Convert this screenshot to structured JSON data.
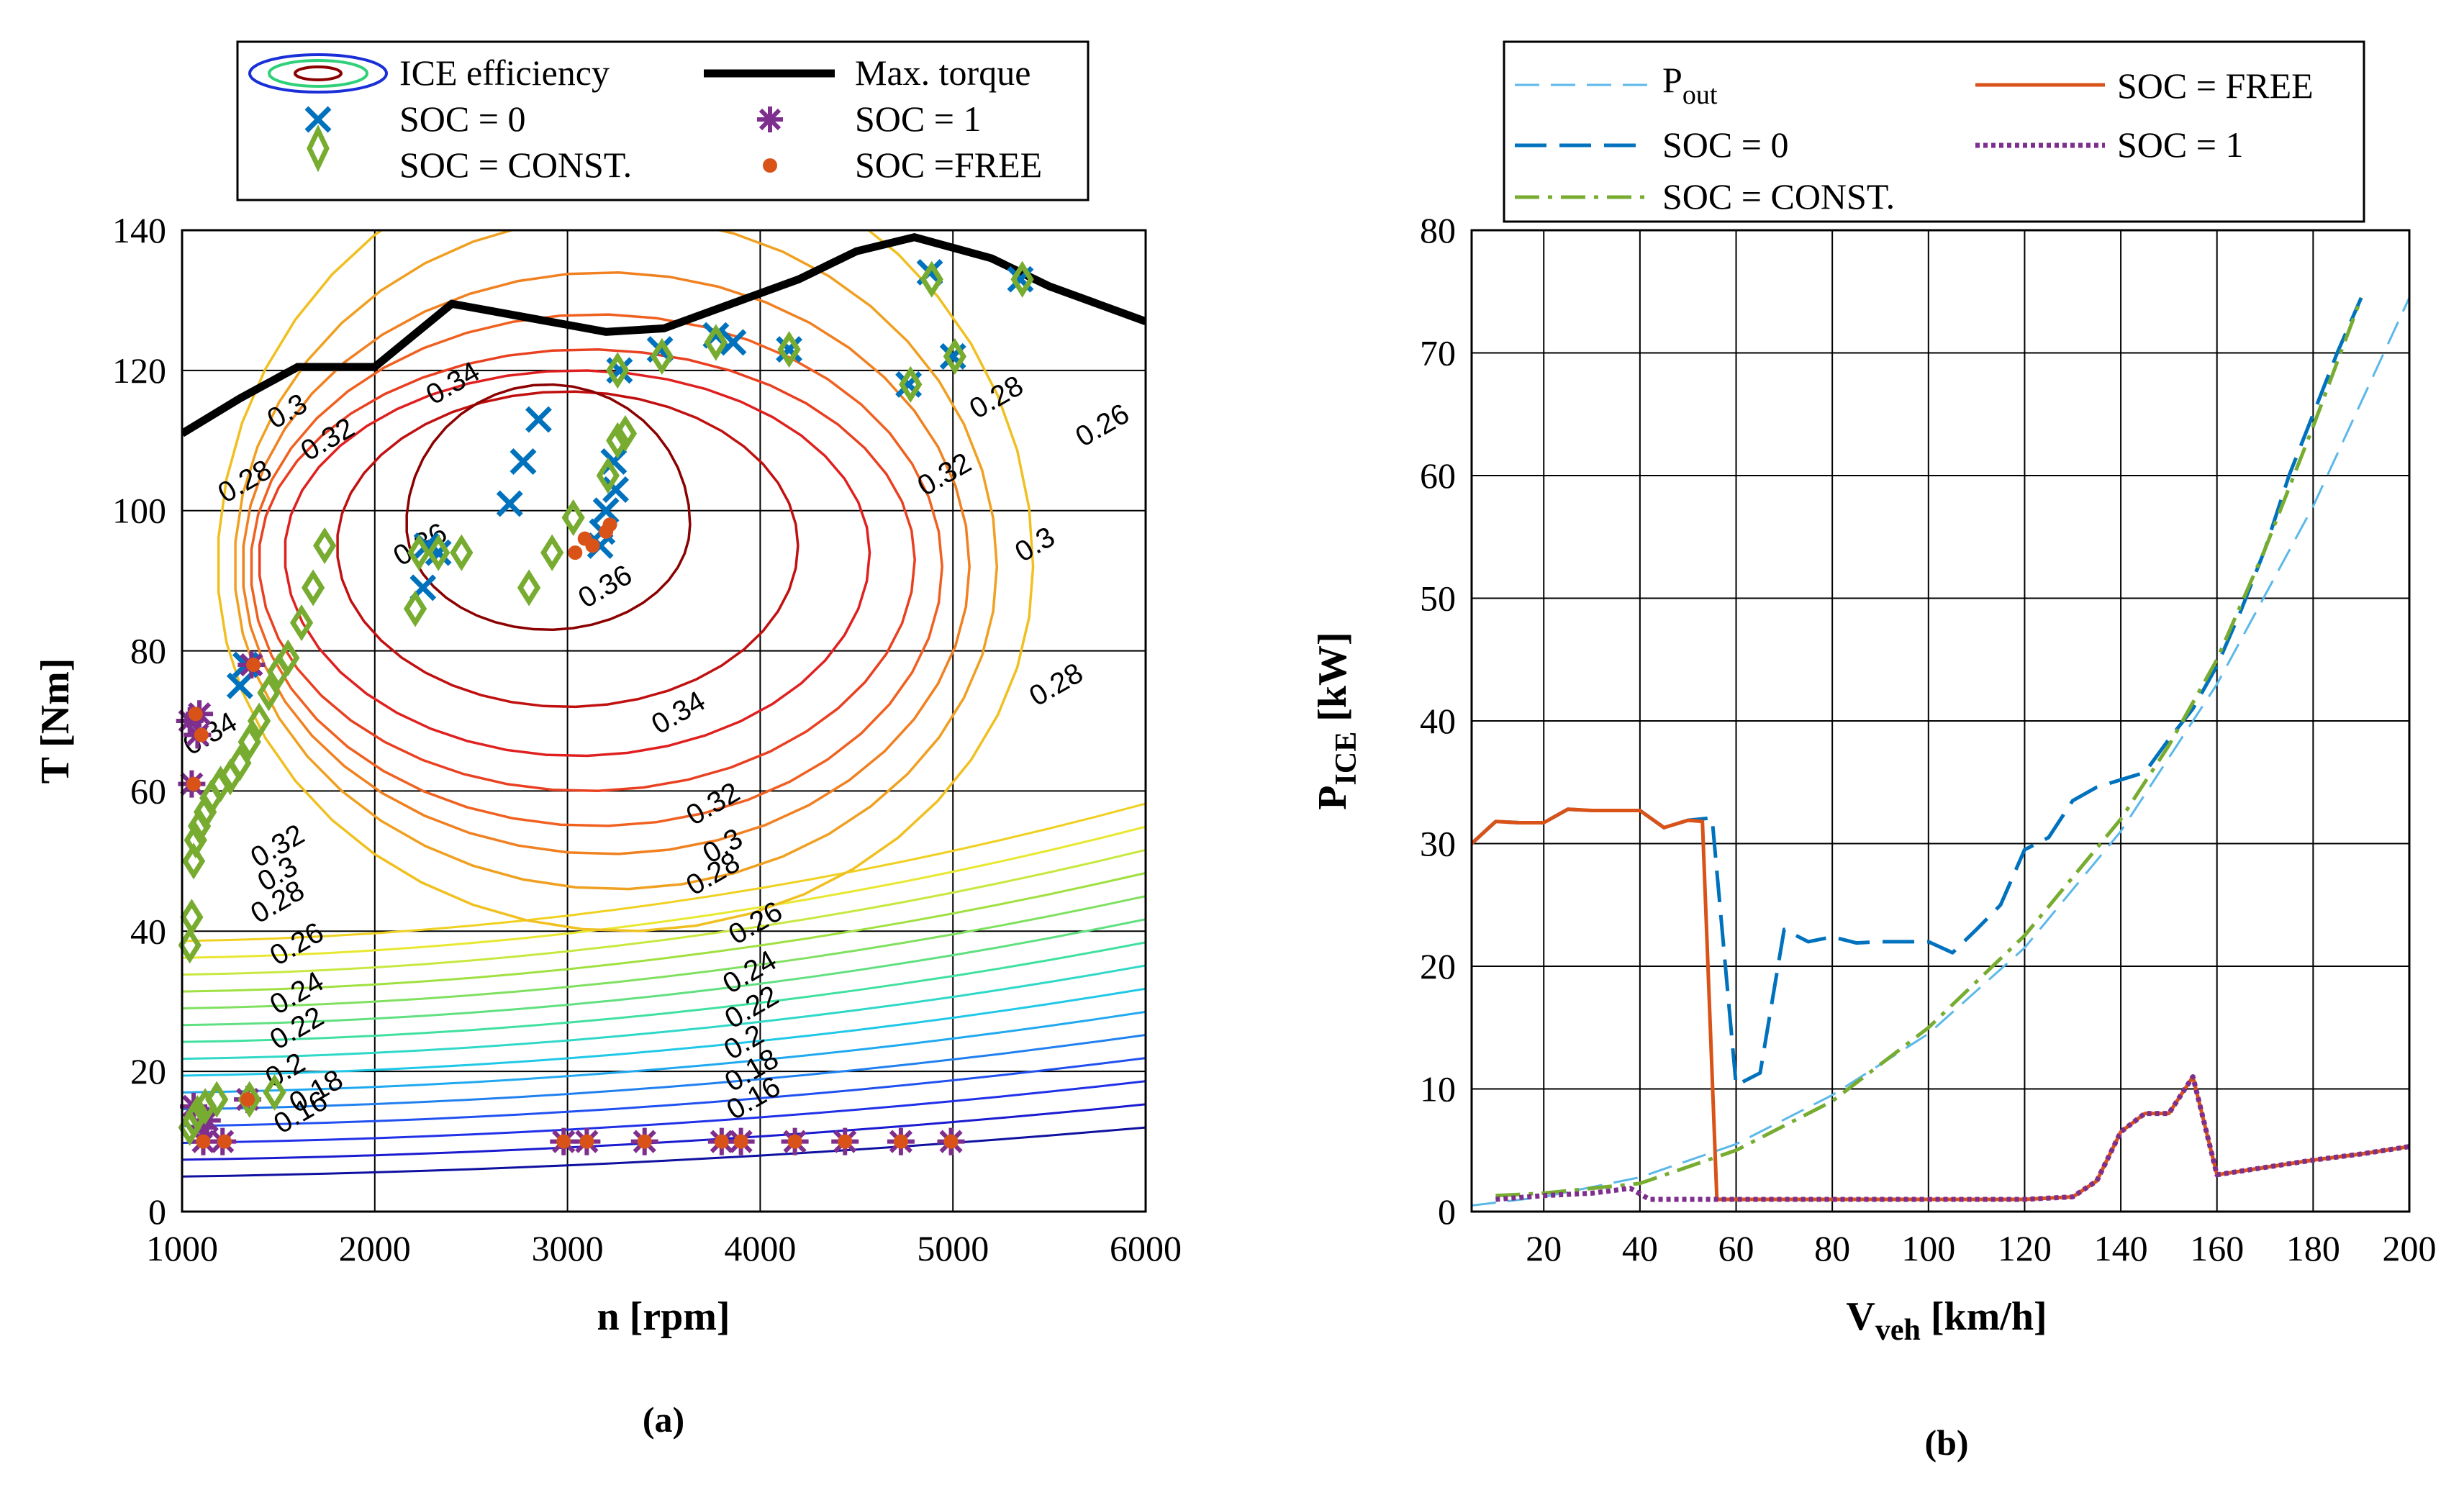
{
  "chart_data": [
    {
      "panel": "(a)",
      "type": "contour",
      "xlabel": "n [rpm]",
      "ylabel": "T [Nm]",
      "xlim": [
        1000,
        6000
      ],
      "ylim": [
        0,
        140
      ],
      "xticks": [
        1000,
        2000,
        3000,
        4000,
        5000,
        6000
      ],
      "yticks": [
        0,
        20,
        40,
        60,
        80,
        100,
        120,
        140
      ],
      "grid": true,
      "legend_position": "top",
      "legend": [
        "ICE efficiency",
        "Max. torque",
        "SOC = 0",
        "SOC = 1",
        "SOC = CONST.",
        "SOC =FREE"
      ],
      "contour_labels": [
        {
          "text": "0.36",
          "x": 3220,
          "y": 88
        },
        {
          "text": "0.36",
          "x": 2260,
          "y": 94
        },
        {
          "text": "0.34",
          "x": 2430,
          "y": 117
        },
        {
          "text": "0.34",
          "x": 3600,
          "y": 70
        },
        {
          "text": "0.34",
          "x": 1170,
          "y": 67
        },
        {
          "text": "0.32",
          "x": 1780,
          "y": 109
        },
        {
          "text": "0.32",
          "x": 4980,
          "y": 104
        },
        {
          "text": "0.32",
          "x": 3780,
          "y": 57
        },
        {
          "text": "0.32",
          "x": 1520,
          "y": 51
        },
        {
          "text": "0.3",
          "x": 1570,
          "y": 113
        },
        {
          "text": "0.3",
          "x": 5450,
          "y": 94
        },
        {
          "text": "0.3",
          "x": 3830,
          "y": 51
        },
        {
          "text": "0.3",
          "x": 1520,
          "y": 47
        },
        {
          "text": "0.28",
          "x": 1350,
          "y": 103
        },
        {
          "text": "0.28",
          "x": 5250,
          "y": 115
        },
        {
          "text": "0.28",
          "x": 5560,
          "y": 74
        },
        {
          "text": "0.28",
          "x": 3780,
          "y": 47
        },
        {
          "text": "0.28",
          "x": 1520,
          "y": 43
        },
        {
          "text": "0.26",
          "x": 5800,
          "y": 111
        },
        {
          "text": "0.26",
          "x": 4000,
          "y": 40
        },
        {
          "text": "0.26",
          "x": 1620,
          "y": 37
        },
        {
          "text": "0.24",
          "x": 3970,
          "y": 33
        },
        {
          "text": "0.24",
          "x": 1620,
          "y": 30
        },
        {
          "text": "0.22",
          "x": 3980,
          "y": 28
        },
        {
          "text": "0.22",
          "x": 1620,
          "y": 25
        },
        {
          "text": "0.2",
          "x": 3940,
          "y": 23
        },
        {
          "text": "0.2",
          "x": 1560,
          "y": 19
        },
        {
          "text": "0.18",
          "x": 3980,
          "y": 19
        },
        {
          "text": "0.18",
          "x": 1720,
          "y": 16
        },
        {
          "text": "0.16",
          "x": 3990,
          "y": 15
        },
        {
          "text": "0.16",
          "x": 1640,
          "y": 13
        }
      ],
      "series": [
        {
          "name": "Max. torque",
          "x": [
            1000,
            1300,
            1600,
            2000,
            2400,
            3000,
            3200,
            3500,
            3800,
            4200,
            4500,
            4800,
            5200,
            5500,
            6000
          ],
          "y": [
            111,
            116,
            120.5,
            120.5,
            129.5,
            126.5,
            125.5,
            126,
            129,
            133,
            137,
            139,
            136,
            132,
            127
          ]
        },
        {
          "name": "SOC = 0",
          "marker": "x",
          "x": [
            1300,
            1330,
            2250,
            2270,
            2330,
            2700,
            2770,
            2850,
            3170,
            3180,
            3200,
            3240,
            3250,
            3270,
            3480,
            3770,
            3860,
            4150,
            4770,
            4880,
            5000,
            5350
          ],
          "y": [
            75,
            78,
            89,
            95,
            94,
            101,
            107,
            113,
            95,
            97,
            100,
            107,
            103,
            120,
            123,
            125,
            124,
            123,
            118,
            134,
            122,
            133
          ]
        },
        {
          "name": "SOC = 1",
          "marker": "*",
          "x": [
            1040,
            1050,
            1060,
            1080,
            1090,
            1100,
            1110,
            1130,
            1210,
            1340,
            1360,
            2980,
            3100,
            3400,
            3800,
            3900,
            4180,
            4440,
            4730,
            4990
          ],
          "y": [
            70,
            61,
            15,
            68,
            71,
            12,
            10,
            13,
            10,
            16,
            78,
            10,
            10,
            10,
            10,
            10,
            10,
            10,
            10,
            10
          ]
        },
        {
          "name": "SOC = CONST.",
          "marker": "diamond",
          "x": [
            1040,
            1050,
            1060,
            1070,
            1090,
            1120,
            1150,
            1200,
            1250,
            1300,
            1350,
            1400,
            1450,
            1500,
            1550,
            1620,
            1680,
            1740,
            1040,
            1060,
            1080,
            1120,
            1180,
            1350,
            1480,
            2210,
            2230,
            2330,
            2450,
            2800,
            2920,
            3030,
            3210,
            3260,
            3260,
            3300,
            3490,
            3770,
            4150,
            4780,
            4890,
            5010,
            5360
          ],
          "y": [
            38,
            42,
            50,
            53,
            55,
            57,
            59,
            61,
            62,
            64,
            67,
            70,
            74,
            77,
            79,
            84,
            89,
            95,
            12,
            13,
            14,
            15,
            16,
            16,
            17,
            86,
            94,
            94,
            94,
            89,
            94,
            99,
            105,
            110,
            120,
            111,
            122,
            124,
            123,
            118,
            133,
            122,
            133
          ]
        },
        {
          "name": "SOC =FREE",
          "marker": "dot",
          "x": [
            1060,
            1070,
            1100,
            1110,
            1220,
            1340,
            1370,
            2980,
            3100,
            3400,
            3800,
            3900,
            4180,
            4440,
            4730,
            4990,
            3040,
            3090,
            3130,
            3200,
            3220
          ],
          "y": [
            61,
            71,
            68,
            10,
            10,
            16,
            78,
            10,
            10,
            10,
            10,
            10,
            10,
            10,
            10,
            10,
            94,
            96,
            95,
            97,
            98
          ]
        }
      ]
    },
    {
      "panel": "(b)",
      "type": "line",
      "xlabel": "V",
      "xlabel_sub": "veh",
      "xlabel_unit": " [km/h]",
      "ylabel": "P",
      "ylabel_sub": "ICE",
      "ylabel_unit": " [kW]",
      "xlim": [
        5,
        200
      ],
      "ylim": [
        0,
        80
      ],
      "xticks": [
        20,
        40,
        60,
        80,
        100,
        120,
        140,
        160,
        180,
        200
      ],
      "yticks": [
        0,
        10,
        20,
        30,
        40,
        50,
        60,
        70,
        80
      ],
      "grid": true,
      "legend_position": "top",
      "legend": [
        {
          "name": "P",
          "sub": "out",
          "color": "#5bb8e8"
        },
        {
          "name": "SOC = FREE",
          "sub": "",
          "color": "#d95319"
        },
        {
          "name": "SOC = 0",
          "sub": "",
          "color": "#0072bd"
        },
        {
          "name": "SOC = 1",
          "sub": "",
          "color": "#7e2f8e"
        },
        {
          "name": "SOC = CONST.",
          "sub": "",
          "color": "#77ac30"
        }
      ],
      "series": [
        {
          "name": "P",
          "x": [
            5,
            20,
            40,
            60,
            80,
            100,
            120,
            140,
            160,
            180,
            200
          ],
          "y": [
            0.5,
            1.2,
            2.8,
            5.5,
            9.5,
            14.5,
            21.5,
            31,
            43,
            57.5,
            74.5
          ]
        },
        {
          "name": "SOC = 0",
          "x": [
            5,
            10,
            15,
            20,
            25,
            30,
            35,
            40,
            45,
            50,
            55,
            60,
            65,
            70,
            75,
            80,
            85,
            90,
            95,
            100,
            105,
            110,
            115,
            120,
            125,
            130,
            135,
            140,
            145,
            150,
            155,
            160,
            165,
            170,
            175,
            180,
            185,
            190
          ],
          "y": [
            30,
            31.8,
            31.7,
            31.7,
            32.8,
            32.7,
            32.7,
            32.7,
            31.3,
            31.9,
            32.1,
            10.3,
            11.3,
            23,
            22,
            22.4,
            21.9,
            22,
            22,
            22,
            21.1,
            23,
            25,
            29.5,
            30.5,
            33.5,
            34.6,
            35.2,
            35.8,
            38.5,
            41,
            44.5,
            49,
            54,
            60,
            65,
            70,
            74.5
          ]
        },
        {
          "name": "SOC = CONST.",
          "x": [
            10,
            20,
            40,
            60,
            80,
            100,
            120,
            140,
            150,
            160,
            170,
            180,
            190
          ],
          "y": [
            1.3,
            1.5,
            2.3,
            5,
            9,
            15,
            22.5,
            32,
            38,
            45,
            54,
            64,
            74.5
          ]
        },
        {
          "name": "SOC = FREE",
          "x": [
            5,
            10,
            15,
            20,
            25,
            30,
            35,
            40,
            45,
            50,
            53,
            56,
            60,
            80,
            100,
            120,
            130,
            135,
            140,
            145,
            150,
            155,
            160,
            170,
            180,
            190,
            200
          ],
          "y": [
            30,
            31.8,
            31.7,
            31.7,
            32.8,
            32.7,
            32.7,
            32.7,
            31.3,
            31.9,
            31.8,
            1,
            1,
            1,
            1,
            1,
            1.2,
            2.5,
            6.5,
            8,
            8,
            11,
            3,
            3.6,
            4.2,
            4.7,
            5.3
          ]
        },
        {
          "name": "SOC = 1",
          "x": [
            10,
            20,
            30,
            38,
            42,
            60,
            80,
            100,
            120,
            130,
            135,
            140,
            145,
            150,
            155,
            160,
            170,
            180,
            190,
            200
          ],
          "y": [
            1,
            1.3,
            1.5,
            1.9,
            1,
            1,
            1,
            1,
            1,
            1.2,
            2.5,
            6.5,
            8,
            8,
            11,
            3,
            3.6,
            4.2,
            4.7,
            5.3
          ]
        }
      ]
    }
  ]
}
